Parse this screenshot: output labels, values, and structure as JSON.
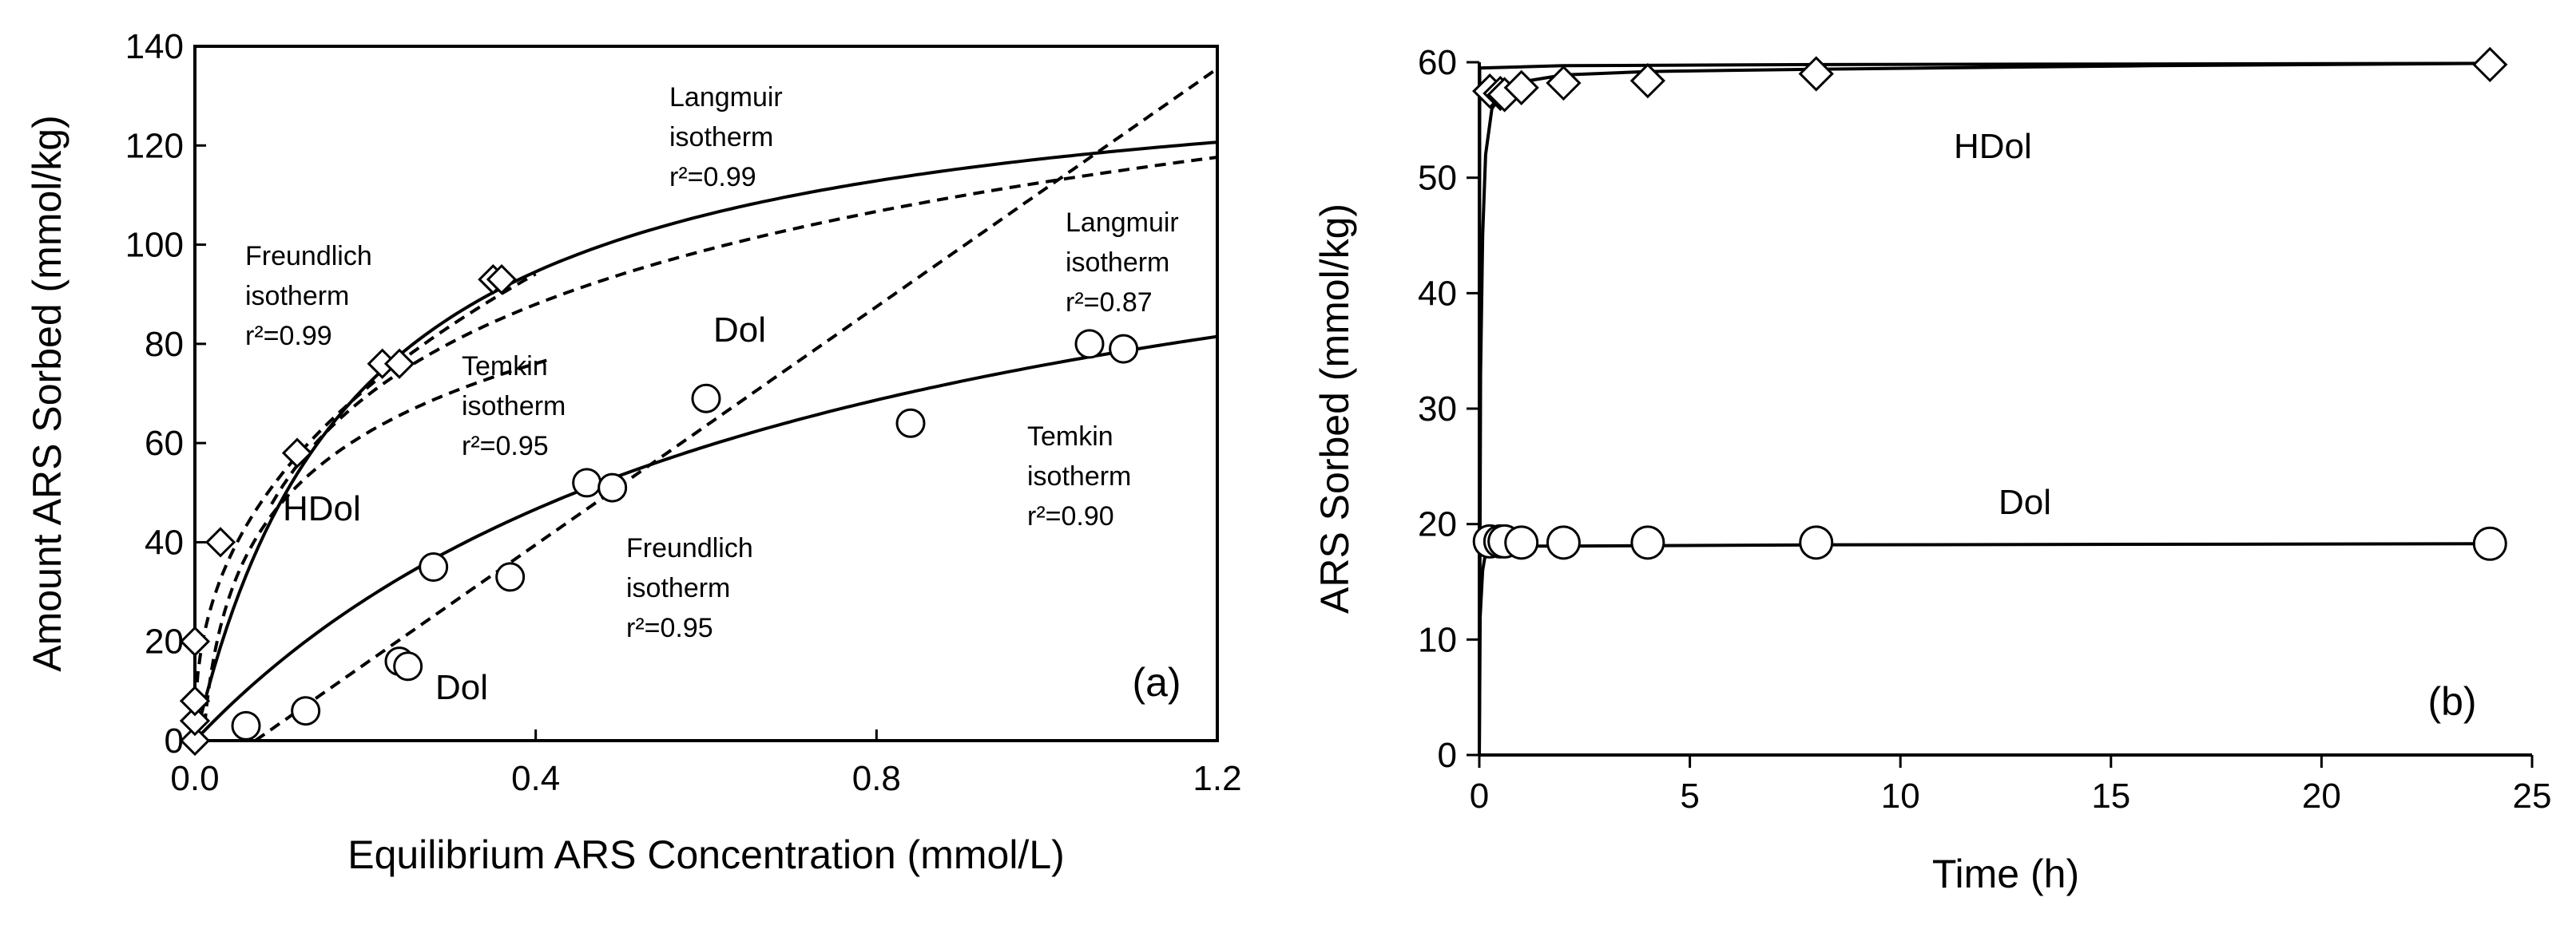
{
  "chart_data": [
    {
      "panel": "a",
      "type": "scatter",
      "panel_label": "(a)",
      "xlabel": "Equilibrium ARS Concentration (mmol/L)",
      "ylabel": "Amount ARS Sorbed (mmol/kg)",
      "xlim": [
        0,
        1.2
      ],
      "ylim": [
        0,
        140
      ],
      "x_ticks": [
        "0.0",
        "0.4",
        "0.8",
        "1.2"
      ],
      "x_tick_values": [
        0,
        0.4,
        0.8,
        1.2
      ],
      "y_ticks": [
        0,
        20,
        40,
        60,
        80,
        100,
        120,
        140
      ],
      "series": [
        {
          "name": "HDol",
          "marker": "diamond",
          "label": "HDol",
          "points": [
            [
              0.0,
              0
            ],
            [
              0.0,
              4
            ],
            [
              0.0,
              8
            ],
            [
              0.0,
              20
            ],
            [
              0.03,
              40
            ],
            [
              0.12,
              58
            ],
            [
              0.22,
              76
            ],
            [
              0.24,
              76
            ],
            [
              0.35,
              93
            ],
            [
              0.36,
              93
            ]
          ]
        },
        {
          "name": "Dol",
          "marker": "circle",
          "label": "Dol",
          "points": [
            [
              0.06,
              3
            ],
            [
              0.13,
              6
            ],
            [
              0.24,
              16
            ],
            [
              0.25,
              15
            ],
            [
              0.28,
              35
            ],
            [
              0.37,
              33
            ],
            [
              0.46,
              52
            ],
            [
              0.49,
              51
            ],
            [
              0.6,
              69
            ],
            [
              0.84,
              64
            ],
            [
              1.05,
              80
            ],
            [
              1.09,
              79
            ]
          ]
        }
      ],
      "fits": [
        {
          "name": "HDol Langmuir",
          "style": "solid",
          "model": "langmuir",
          "params": {
            "Q": 140,
            "K": 5.2
          },
          "x_range": [
            0,
            1.2
          ]
        },
        {
          "name": "HDol Freundlich",
          "style": "dashed",
          "model": "freundlich",
          "params": {
            "K": 137,
            "n": 0.41
          },
          "x_range": [
            0.001,
            0.4
          ]
        },
        {
          "name": "HDol Temkin",
          "style": "dashed",
          "model": "temkin",
          "params": {
            "A": 102,
            "B": 20.5
          },
          "x_range": [
            0.001,
            0.42
          ]
        },
        {
          "name": "Dol Langmuir",
          "style": "solid",
          "model": "langmuir",
          "params": {
            "Q": 130,
            "K": 1.4
          },
          "x_range": [
            0,
            1.2
          ]
        },
        {
          "name": "Dol Freundlich",
          "style": "dashed",
          "model": "line",
          "params": {
            "m": 120,
            "b": -8.5
          },
          "x_range": [
            0.071,
            1.2
          ]
        },
        {
          "name": "Dol Temkin",
          "style": "dashed",
          "model": "temkin",
          "params": {
            "A": 65,
            "B": 27
          },
          "x_range": [
            0.09,
            1.2
          ]
        }
      ],
      "annotations": [
        {
          "id": "langmuir_hdol",
          "lines": [
            "Langmuir",
            "isotherm",
            "r²=0.99"
          ]
        },
        {
          "id": "freundlich_hdol",
          "lines": [
            "Freundlich",
            "isotherm",
            "r²=0.99"
          ]
        },
        {
          "id": "temkin_hdol",
          "lines": [
            "Temkin",
            "isotherm",
            "r²=0.95"
          ]
        },
        {
          "id": "langmuir_dol",
          "lines": [
            "Langmuir",
            "isotherm",
            "r²=0.87"
          ]
        },
        {
          "id": "temkin_dol",
          "lines": [
            "Temkin",
            "isotherm",
            "r²=0.90"
          ]
        },
        {
          "id": "freundlich_dol",
          "lines": [
            "Freundlich",
            "isotherm",
            "r²=0.95"
          ]
        },
        {
          "id": "label_hdol",
          "lines": [
            "HDol"
          ]
        },
        {
          "id": "label_dol_mid",
          "lines": [
            "Dol"
          ]
        },
        {
          "id": "label_dol_low",
          "lines": [
            "Dol"
          ]
        }
      ]
    },
    {
      "panel": "b",
      "type": "line",
      "panel_label": "(b)",
      "xlabel": "Time (h)",
      "ylabel": "ARS Sorbed (mmol/kg)",
      "xlim": [
        0,
        25
      ],
      "ylim": [
        0,
        60
      ],
      "x_ticks": [
        0,
        5,
        10,
        15,
        20,
        25
      ],
      "y_ticks": [
        0,
        10,
        20,
        30,
        40,
        50,
        60
      ],
      "series": [
        {
          "name": "HDol",
          "marker": "diamond",
          "label": "HDol",
          "points": [
            [
              0.25,
              57.5
            ],
            [
              0.5,
              57.3
            ],
            [
              0.6,
              57.2
            ],
            [
              1,
              57.8
            ],
            [
              2,
              58.2
            ],
            [
              4,
              58.4
            ],
            [
              8,
              59
            ],
            [
              24,
              59.8
            ]
          ]
        },
        {
          "name": "Dol",
          "marker": "circle",
          "label": "Dol",
          "points": [
            [
              0.25,
              18.5
            ],
            [
              0.5,
              18.5
            ],
            [
              0.6,
              18.5
            ],
            [
              1,
              18.4
            ],
            [
              2,
              18.4
            ],
            [
              4,
              18.4
            ],
            [
              8,
              18.4
            ],
            [
              24,
              18.3
            ]
          ]
        }
      ],
      "fits": [
        {
          "name": "HDol fit",
          "style": "solid",
          "points": [
            [
              0,
              0
            ],
            [
              0.03,
              33
            ],
            [
              0.08,
              45
            ],
            [
              0.15,
              52
            ],
            [
              0.3,
              56
            ],
            [
              0.6,
              57.5
            ],
            [
              1,
              58.3
            ],
            [
              2,
              58.9
            ],
            [
              4,
              59.2
            ],
            [
              8,
              59.4
            ],
            [
              16,
              59.7
            ],
            [
              24,
              59.9
            ]
          ]
        },
        {
          "name": "HDol envelope",
          "style": "solid",
          "points": [
            [
              0,
              0
            ],
            [
              0.01,
              59.5
            ],
            [
              2,
              59.7
            ],
            [
              8,
              59.8
            ],
            [
              24,
              59.9
            ]
          ]
        },
        {
          "name": "Dol fit",
          "style": "solid",
          "points": [
            [
              0,
              0
            ],
            [
              0.02,
              12
            ],
            [
              0.08,
              16
            ],
            [
              0.15,
              17.5
            ],
            [
              0.3,
              18.1
            ],
            [
              0.6,
              18.1
            ],
            [
              1,
              18.1
            ],
            [
              2,
              18.1
            ],
            [
              8,
              18.2
            ],
            [
              24,
              18.3
            ]
          ]
        }
      ],
      "annotations": [
        {
          "id": "label_hdol_b",
          "lines": [
            "HDol"
          ]
        },
        {
          "id": "label_dol_b",
          "lines": [
            "Dol"
          ]
        }
      ]
    }
  ]
}
